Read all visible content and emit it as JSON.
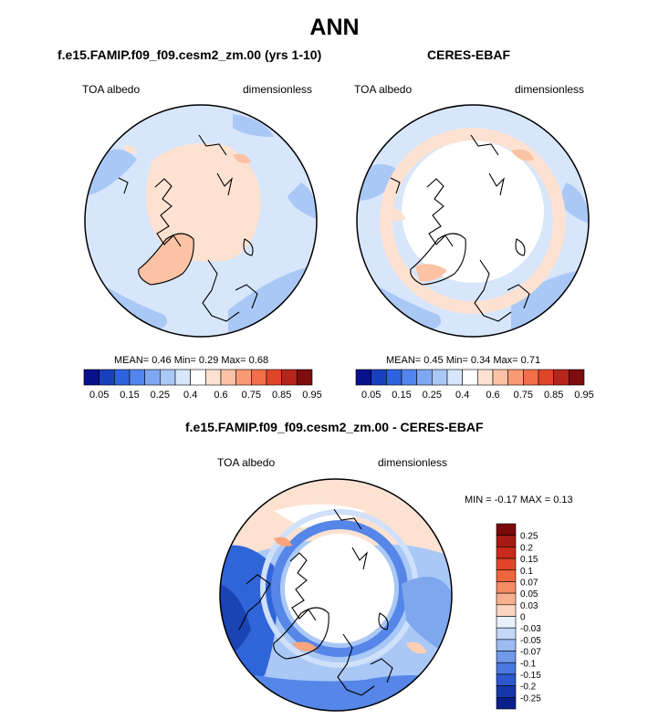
{
  "main_title": "ANN",
  "panels": [
    {
      "title": "f.e15.FAMIP.f09_f09.cesm2_zm.00 (yrs 1-10)",
      "left_label": "TOA albedo",
      "right_label": "dimensionless",
      "stats": "MEAN=  0.46  Min=  0.29  Max=  0.68"
    },
    {
      "title": "CERES-EBAF",
      "left_label": "TOA albedo",
      "right_label": "dimensionless",
      "stats": "MEAN=  0.45  Min=  0.34  Max=  0.71"
    },
    {
      "title": "f.e15.FAMIP.f09_f09.cesm2_zm.00 - CERES-EBAF",
      "left_label": "TOA albedo",
      "right_label": "dimensionless",
      "stats": "MIN =  -0.17 MAX =   0.13"
    }
  ],
  "chart_data": [
    {
      "type": "heatmap",
      "projection": "north polar stereographic",
      "title": "f.e15.FAMIP.f09_f09.cesm2_zm.00 (yrs 1-10)",
      "variable": "TOA albedo",
      "units": "dimensionless",
      "mean": 0.46,
      "min": 0.29,
      "max": 0.68,
      "colorbar_ticks": [
        "0.05",
        "0.15",
        "0.25",
        "0.4",
        "0.6",
        "0.75",
        "0.85",
        "0.95"
      ],
      "colorbar_orientation": "horizontal"
    },
    {
      "type": "heatmap",
      "projection": "north polar stereographic",
      "title": "CERES-EBAF",
      "variable": "TOA albedo",
      "units": "dimensionless",
      "mean": 0.45,
      "min": 0.34,
      "max": 0.71,
      "colorbar_ticks": [
        "0.05",
        "0.15",
        "0.25",
        "0.4",
        "0.6",
        "0.75",
        "0.85",
        "0.95"
      ],
      "colorbar_orientation": "horizontal"
    },
    {
      "type": "heatmap",
      "projection": "north polar stereographic",
      "title": "f.e15.FAMIP.f09_f09.cesm2_zm.00 - CERES-EBAF",
      "variable": "TOA albedo",
      "units": "dimensionless",
      "min": -0.17,
      "max": 0.13,
      "colorbar_ticks": [
        "0.25",
        "0.2",
        "0.15",
        "0.1",
        "0.07",
        "0.05",
        "0.03",
        "0",
        "-0.03",
        "-0.05",
        "-0.07",
        "-0.1",
        "-0.15",
        "-0.2",
        "-0.25"
      ],
      "colorbar_orientation": "vertical"
    }
  ],
  "colors": {
    "abs_scale": [
      "#08108c",
      "#1a3fbf",
      "#2f63dd",
      "#5286ee",
      "#7ea7f2",
      "#aac8f6",
      "#d7e6fb",
      "#ffffff",
      "#fde2d2",
      "#fbc2a4",
      "#f89a74",
      "#f26e4a",
      "#e0452a",
      "#b8241b",
      "#7f0d0d"
    ],
    "diff_scale": [
      "#7a0a0a",
      "#b01f17",
      "#d3381e",
      "#ea5a31",
      "#f47e55",
      "#f8a47e",
      "#fbd0b5",
      "#ffffff",
      "#cfe0fa",
      "#a9c7f3",
      "#7ea7ee",
      "#5586e8",
      "#3065d9",
      "#1a43b4",
      "#0b1f8a"
    ]
  }
}
